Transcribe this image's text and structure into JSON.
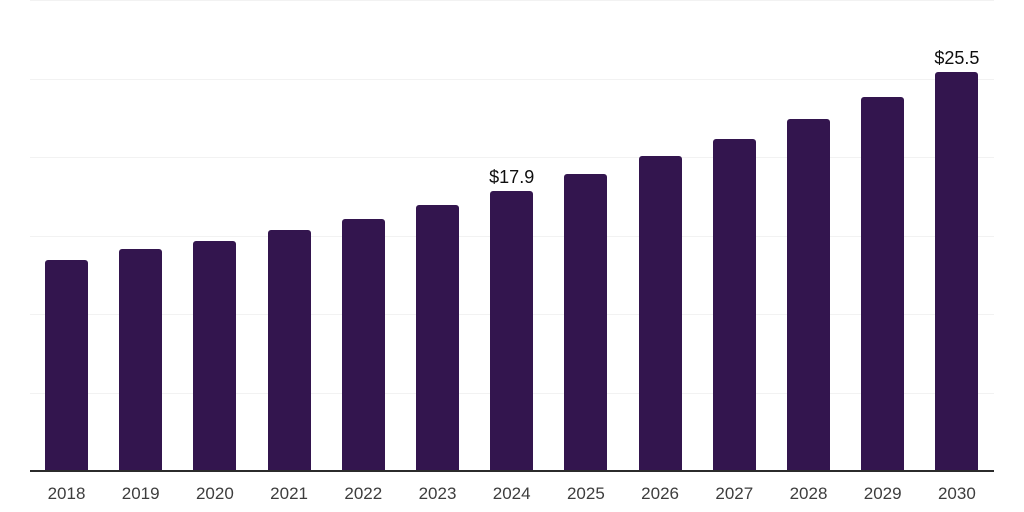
{
  "chart_data": {
    "type": "bar",
    "title": "",
    "xlabel": "",
    "ylabel": "",
    "categories": [
      "2018",
      "2019",
      "2020",
      "2021",
      "2022",
      "2023",
      "2024",
      "2025",
      "2026",
      "2027",
      "2028",
      "2029",
      "2030"
    ],
    "values": [
      13.5,
      14.2,
      14.7,
      15.4,
      16.1,
      17.0,
      17.9,
      19.0,
      20.1,
      21.2,
      22.5,
      23.9,
      25.5
    ],
    "labeled_points": [
      {
        "category": "2024",
        "label": "$17.9"
      },
      {
        "category": "2030",
        "label": "$25.5"
      }
    ],
    "ylim": [
      0,
      30
    ],
    "gridline_step": 5,
    "grid": "horizontal-only",
    "y_tick_labels_visible": false,
    "legend": "none",
    "colors": {
      "bar": "#33154E",
      "axis_line": "#2b2b2b",
      "gridline": "#f2f2f2",
      "x_tick_label": "#3d3d3d",
      "data_label": "#0f0f0f",
      "background": "#ffffff"
    }
  }
}
